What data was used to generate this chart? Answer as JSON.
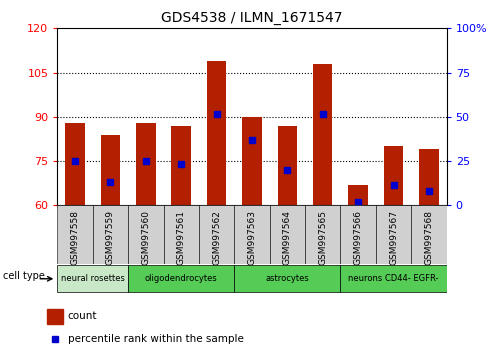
{
  "title": "GDS4538 / ILMN_1671547",
  "samples": [
    "GSM997558",
    "GSM997559",
    "GSM997560",
    "GSM997561",
    "GSM997562",
    "GSM997563",
    "GSM997564",
    "GSM997565",
    "GSM997566",
    "GSM997567",
    "GSM997568"
  ],
  "count_values": [
    88,
    84,
    88,
    87,
    109,
    90,
    87,
    108,
    67,
    80,
    79
  ],
  "percentile_values": [
    75,
    68,
    75,
    74,
    91,
    82,
    72,
    91,
    61,
    67,
    65
  ],
  "ymin": 60,
  "ymax": 120,
  "yticks": [
    60,
    75,
    90,
    105,
    120
  ],
  "y2min": 0,
  "y2max": 100,
  "y2ticks": [
    0,
    25,
    50,
    75,
    100
  ],
  "y2ticklabels": [
    "0",
    "25",
    "50",
    "75",
    "100%"
  ],
  "bar_color": "#B22000",
  "blue_color": "#0000CC",
  "group_spans": [
    {
      "start": 0,
      "end": 2,
      "label": "neural rosettes",
      "color": "#c8e8c8"
    },
    {
      "start": 2,
      "end": 5,
      "label": "oligodendrocytes",
      "color": "#55cc55"
    },
    {
      "start": 5,
      "end": 8,
      "label": "astrocytes",
      "color": "#55cc55"
    },
    {
      "start": 8,
      "end": 11,
      "label": "neurons CD44- EGFR-",
      "color": "#55cc55"
    }
  ],
  "tick_bg_color": "#d0d0d0",
  "bar_width": 0.55
}
